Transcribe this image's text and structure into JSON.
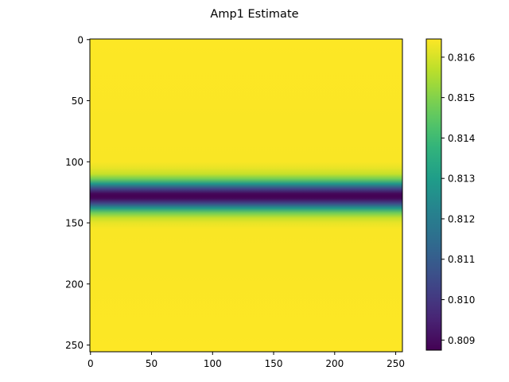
{
  "chart_data": {
    "type": "heatmap",
    "title": "Amp1 Estimate",
    "xlabel": "",
    "ylabel": "",
    "shape": [
      256,
      256
    ],
    "xlim": [
      -0.5,
      255.5
    ],
    "ylim": [
      255.5,
      -0.5
    ],
    "x_ticks": [
      0,
      50,
      100,
      150,
      200,
      250
    ],
    "y_ticks": [
      0,
      50,
      100,
      150,
      200,
      250
    ],
    "description_of_values": "constant along columns; varies only with row",
    "row_profile": {
      "rows": [
        0,
        100,
        105,
        110,
        114,
        118,
        122,
        126,
        128,
        130,
        134,
        138,
        142,
        146,
        150,
        155,
        255
      ],
      "values": [
        0.81645,
        0.8164,
        0.8162,
        0.8158,
        0.8148,
        0.8128,
        0.8104,
        0.8089,
        0.80875,
        0.8089,
        0.8104,
        0.8128,
        0.8148,
        0.8158,
        0.8162,
        0.8164,
        0.81645
      ]
    },
    "colorbar": {
      "colormap": "viridis",
      "range": [
        0.80875,
        0.81645
      ],
      "ticks": [
        0.809,
        0.81,
        0.811,
        0.812,
        0.813,
        0.814,
        0.815,
        0.816
      ],
      "tick_labels": [
        "0.809",
        "0.810",
        "0.811",
        "0.812",
        "0.813",
        "0.814",
        "0.815",
        "0.816"
      ]
    },
    "grid": false,
    "legend": "none"
  }
}
